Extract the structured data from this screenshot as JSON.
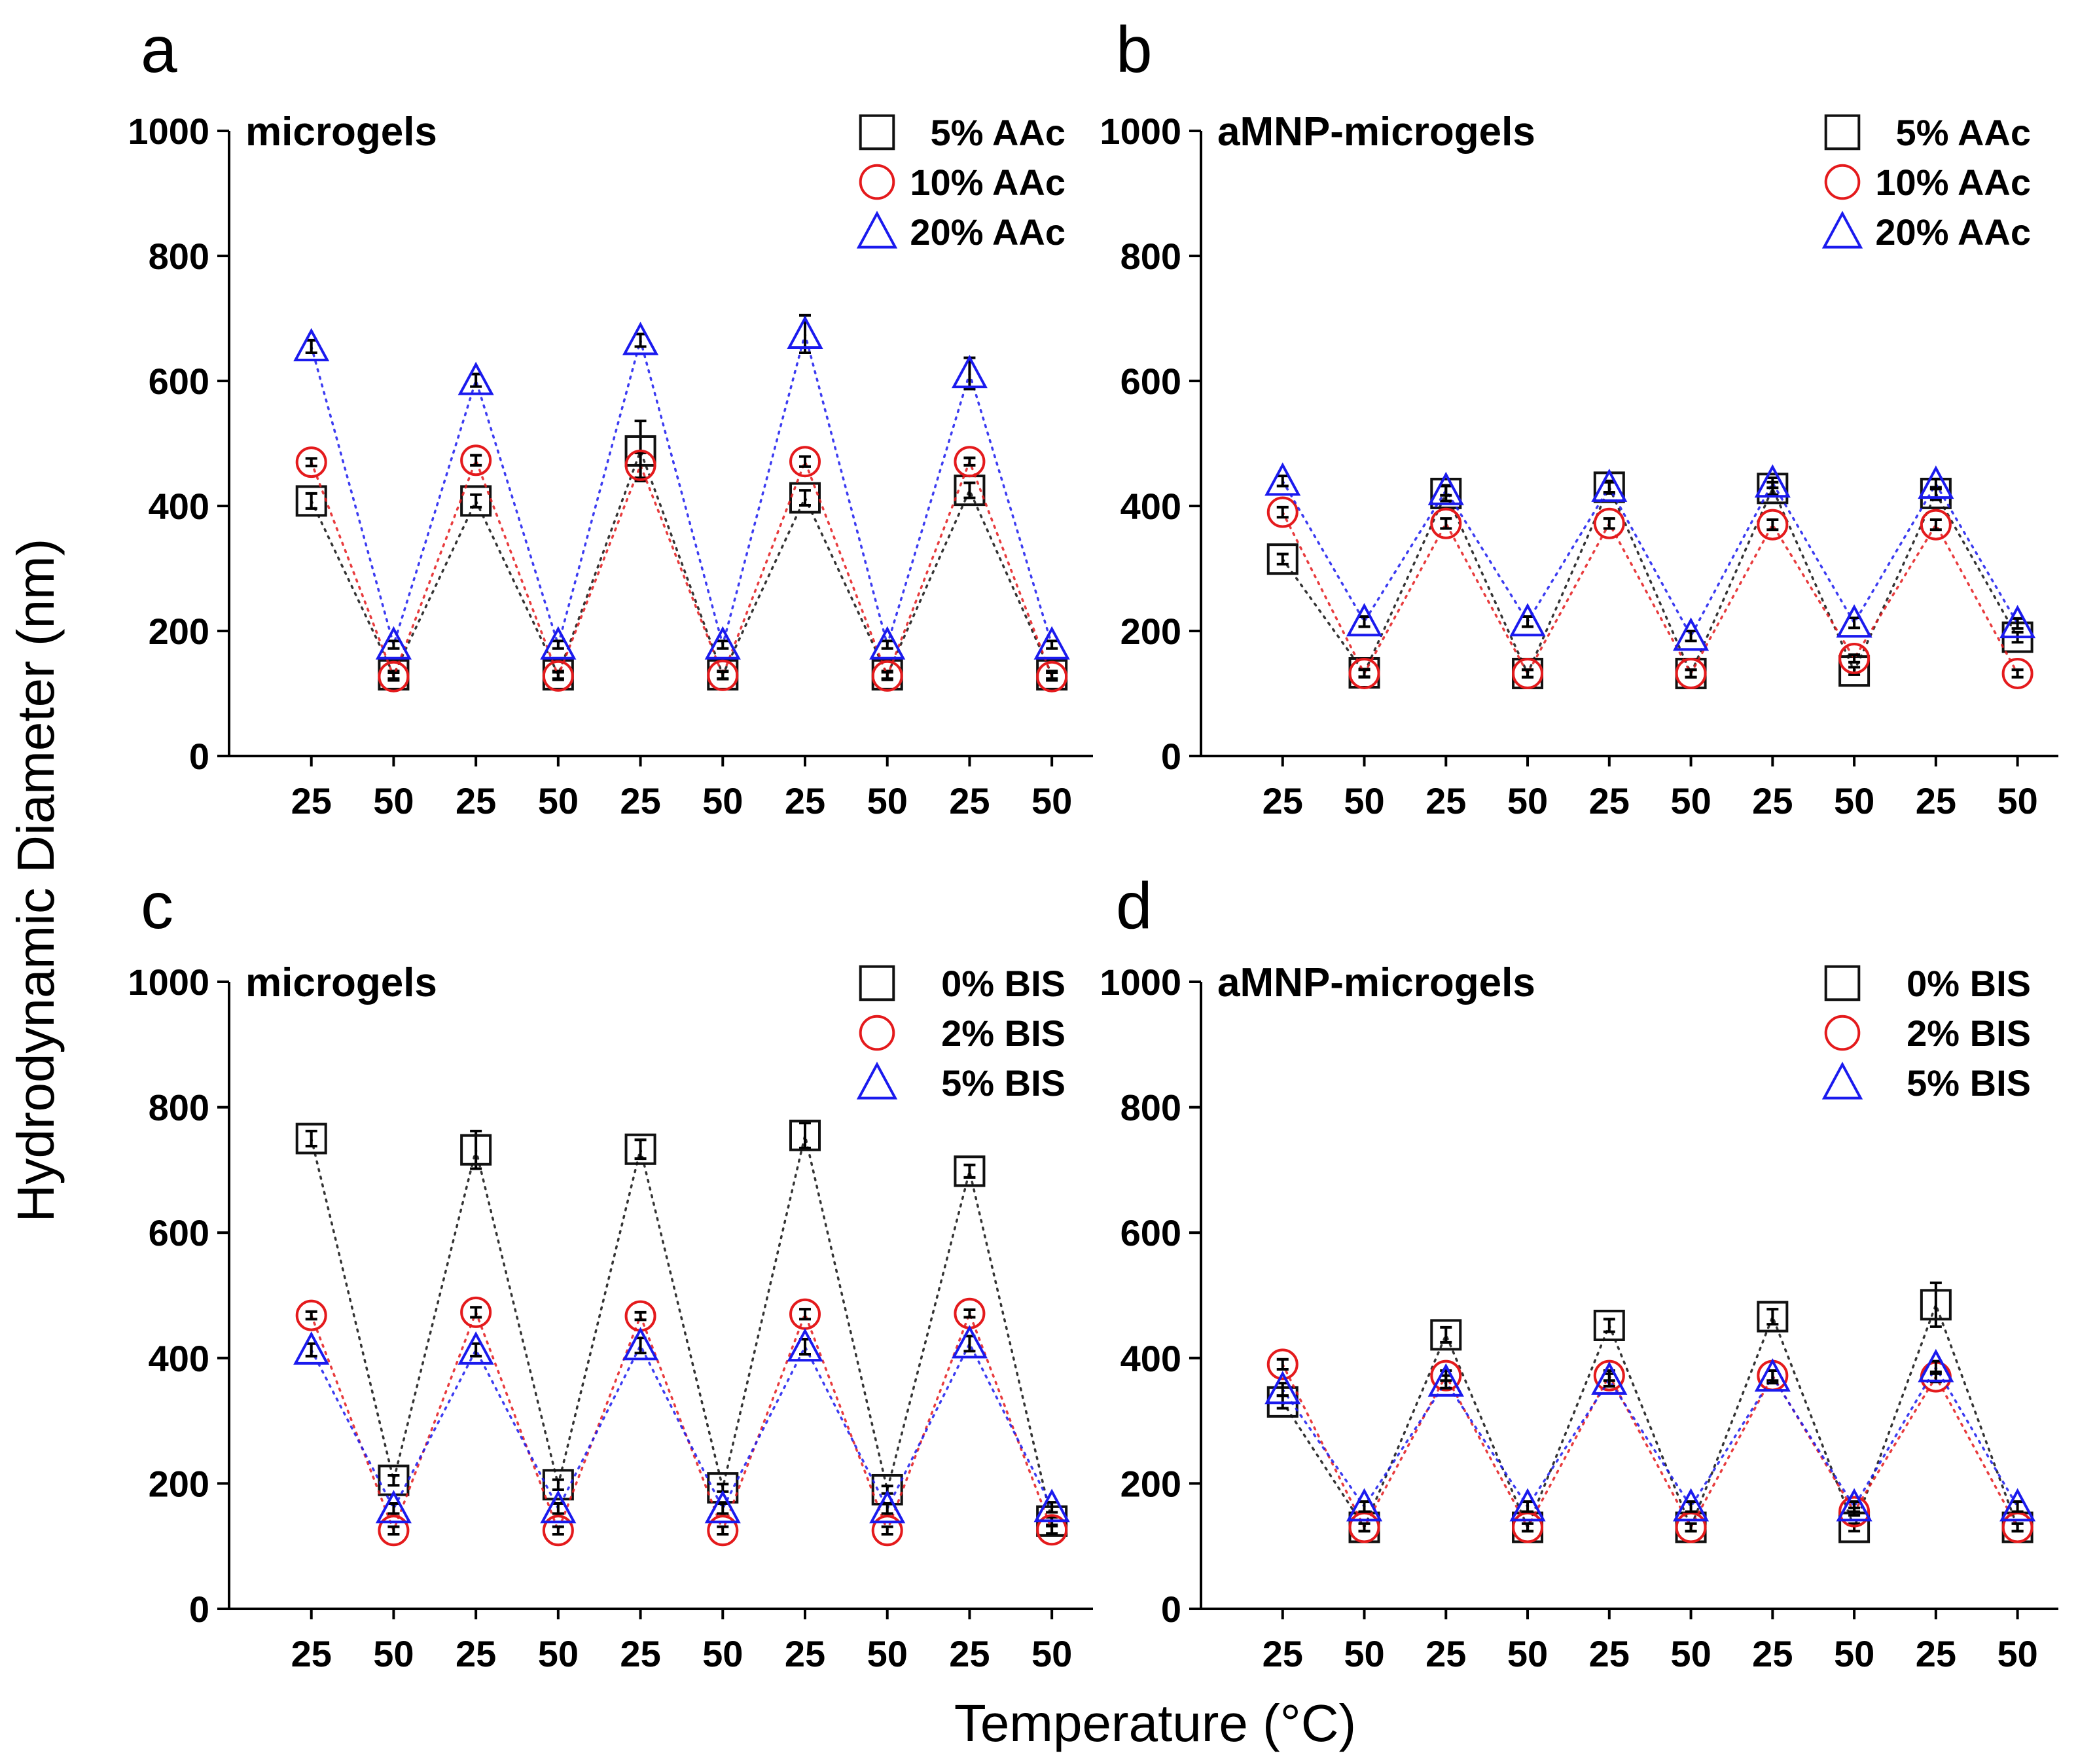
{
  "figure": {
    "ylabel": "Hydrodynamic Diameter (nm)",
    "xlabel": "Temperature (°C)"
  },
  "colors": {
    "black": "#111111",
    "red": "#e41a1c",
    "blue": "#1a1aee"
  },
  "chart_data": [
    {
      "type": "line",
      "panel": "a",
      "title": "microgels",
      "categories": [
        "25",
        "50",
        "25",
        "50",
        "25",
        "50",
        "25",
        "50",
        "25",
        "50"
      ],
      "ylim": [
        0,
        1000
      ],
      "yticks": [
        "0",
        "200",
        "400",
        "600",
        "800",
        "1000"
      ],
      "legend_position": "top-right",
      "series": [
        {
          "name": "5% AAc",
          "marker": "square",
          "color": "black",
          "values": [
            408,
            130,
            408,
            130,
            488,
            130,
            413,
            130,
            425,
            130
          ],
          "errors": [
            12,
            6,
            10,
            6,
            48,
            6,
            12,
            6,
            12,
            6
          ]
        },
        {
          "name": "10% AAc",
          "marker": "circle",
          "color": "red",
          "values": [
            470,
            127,
            473,
            128,
            465,
            129,
            471,
            128,
            471,
            127
          ],
          "errors": [
            6,
            6,
            8,
            6,
            20,
            6,
            8,
            6,
            6,
            6
          ]
        },
        {
          "name": "20% AAc",
          "marker": "triangle",
          "color": "blue",
          "values": [
            655,
            178,
            601,
            178,
            665,
            178,
            675,
            178,
            612,
            178
          ],
          "errors": [
            10,
            6,
            10,
            6,
            10,
            6,
            30,
            6,
            25,
            6
          ]
        }
      ]
    },
    {
      "type": "line",
      "panel": "b",
      "title": "aMNP-microgels",
      "categories": [
        "25",
        "50",
        "25",
        "50",
        "25",
        "50",
        "25",
        "50",
        "25",
        "50"
      ],
      "ylim": [
        0,
        1000
      ],
      "yticks": [
        "0",
        "200",
        "400",
        "600",
        "800",
        "1000"
      ],
      "legend_position": "top-right",
      "series": [
        {
          "name": "5% AAc",
          "marker": "square",
          "color": "black",
          "values": [
            315,
            133,
            420,
            132,
            430,
            132,
            428,
            136,
            420,
            190
          ],
          "errors": [
            8,
            6,
            12,
            6,
            10,
            6,
            10,
            6,
            10,
            8
          ]
        },
        {
          "name": "10% AAc",
          "marker": "circle",
          "color": "red",
          "values": [
            390,
            132,
            372,
            132,
            372,
            132,
            370,
            156,
            370,
            132
          ],
          "errors": [
            8,
            6,
            8,
            6,
            8,
            6,
            8,
            6,
            8,
            6
          ]
        },
        {
          "name": "20% AAc",
          "marker": "triangle",
          "color": "blue",
          "values": [
            440,
            215,
            425,
            215,
            430,
            192,
            437,
            213,
            435,
            212
          ],
          "errors": [
            8,
            8,
            8,
            8,
            8,
            8,
            8,
            8,
            8,
            8
          ]
        }
      ]
    },
    {
      "type": "line",
      "panel": "c",
      "title": "microgels",
      "categories": [
        "25",
        "50",
        "25",
        "50",
        "25",
        "50",
        "25",
        "50",
        "25",
        "50"
      ],
      "ylim": [
        0,
        1000
      ],
      "yticks": [
        "0",
        "200",
        "400",
        "600",
        "800",
        "1000"
      ],
      "legend_position": "top-right",
      "series": [
        {
          "name": "0% BIS",
          "marker": "square",
          "color": "black",
          "values": [
            750,
            205,
            732,
            198,
            733,
            193,
            755,
            190,
            698,
            140
          ],
          "errors": [
            12,
            8,
            30,
            8,
            15,
            6,
            20,
            6,
            10,
            6
          ]
        },
        {
          "name": "2% BIS",
          "marker": "circle",
          "color": "red",
          "values": [
            468,
            125,
            473,
            125,
            467,
            125,
            470,
            125,
            471,
            126
          ],
          "errors": [
            6,
            6,
            8,
            6,
            6,
            6,
            8,
            6,
            6,
            6
          ]
        },
        {
          "name": "5% BIS",
          "marker": "triangle",
          "color": "blue",
          "values": [
            413,
            160,
            413,
            160,
            420,
            160,
            418,
            160,
            423,
            162
          ],
          "errors": [
            10,
            8,
            10,
            8,
            12,
            8,
            12,
            8,
            12,
            8
          ]
        }
      ]
    },
    {
      "type": "line",
      "panel": "d",
      "title": "aMNP-microgels",
      "categories": [
        "25",
        "50",
        "25",
        "50",
        "25",
        "50",
        "25",
        "50",
        "25",
        "50"
      ],
      "ylim": [
        0,
        1000
      ],
      "yticks": [
        "0",
        "200",
        "400",
        "600",
        "800",
        "1000"
      ],
      "legend_position": "top-right",
      "series": [
        {
          "name": "0% BIS",
          "marker": "square",
          "color": "black",
          "values": [
            330,
            130,
            437,
            130,
            452,
            130,
            466,
            130,
            485,
            130
          ],
          "errors": [
            10,
            6,
            12,
            6,
            10,
            6,
            12,
            6,
            35,
            6
          ]
        },
        {
          "name": "2% BIS",
          "marker": "circle",
          "color": "red",
          "values": [
            390,
            130,
            372,
            130,
            372,
            130,
            372,
            155,
            370,
            130
          ],
          "errors": [
            8,
            6,
            8,
            6,
            8,
            6,
            8,
            6,
            8,
            6
          ]
        },
        {
          "name": "5% BIS",
          "marker": "triangle",
          "color": "blue",
          "values": [
            350,
            163,
            362,
            163,
            365,
            163,
            370,
            163,
            385,
            163
          ],
          "errors": [
            10,
            8,
            10,
            8,
            10,
            8,
            10,
            8,
            10,
            8
          ]
        }
      ]
    }
  ]
}
